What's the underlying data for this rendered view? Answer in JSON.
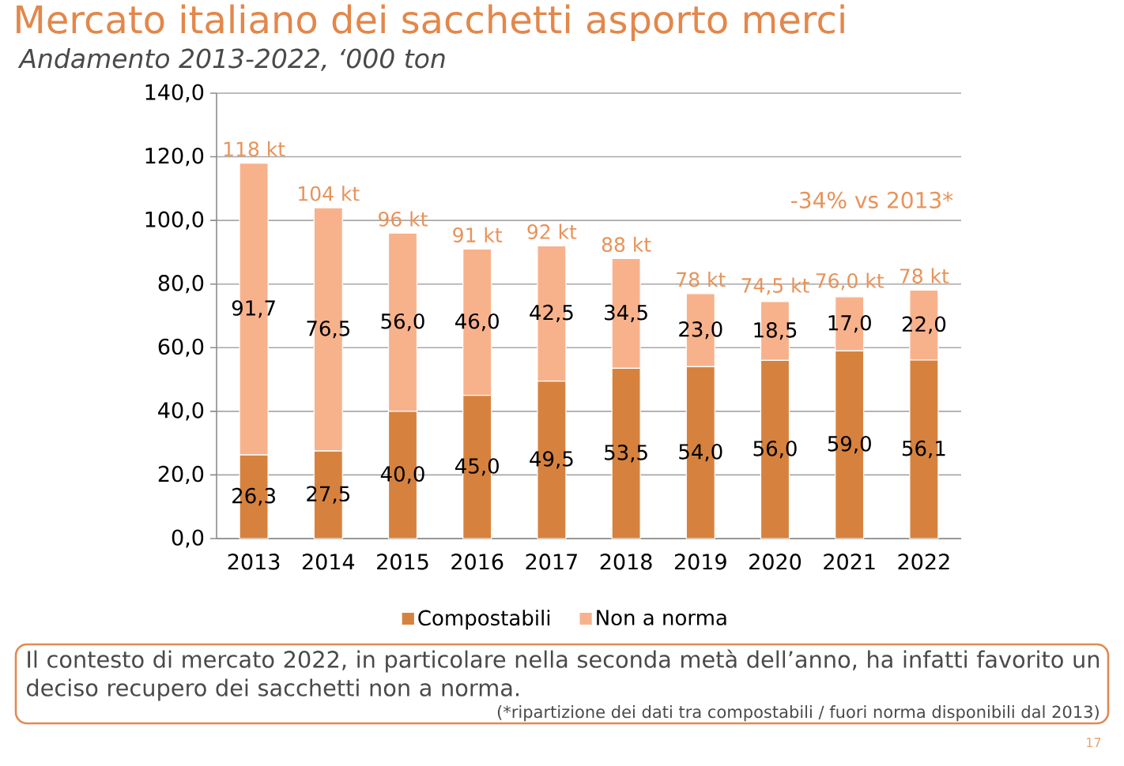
{
  "chart_data": {
    "type": "bar",
    "stacked": true,
    "title": "Mercato italiano dei sacchetti asporto merci",
    "subtitle": "Andamento 2013-2022, ‘000 ton",
    "categories": [
      "2013",
      "2014",
      "2015",
      "2016",
      "2017",
      "2018",
      "2019",
      "2020",
      "2021",
      "2022"
    ],
    "series": [
      {
        "name": "Compostabili",
        "color": "#d6823e",
        "values": [
          26.3,
          27.5,
          40.0,
          45.0,
          49.5,
          53.5,
          54.0,
          56.0,
          59.0,
          56.1
        ],
        "value_labels": [
          "26,3",
          "27,5",
          "40,0",
          "45,0",
          "49,5",
          "53,5",
          "54,0",
          "56,0",
          "59,0",
          "56,1"
        ]
      },
      {
        "name": "Non a norma",
        "color": "#f7b28c",
        "values": [
          91.7,
          76.5,
          56.0,
          46.0,
          42.5,
          34.5,
          23.0,
          18.5,
          17.0,
          22.0
        ],
        "value_labels": [
          "91,7",
          "76,5",
          "56,0",
          "46,0",
          "42,5",
          "34,5",
          "23,0",
          "18,5",
          "17,0",
          "22,0"
        ]
      }
    ],
    "totals": [
      "118 kt",
      "104 kt",
      "96 kt",
      "91 kt",
      "92 kt",
      "88 kt",
      "78 kt",
      "74,5 kt",
      "76,0 kt",
      "78 kt"
    ],
    "ylim": [
      0,
      140
    ],
    "yticks": [
      {
        "value": 0,
        "label": "0,0"
      },
      {
        "value": 20,
        "label": "20,0"
      },
      {
        "value": 40,
        "label": "40,0"
      },
      {
        "value": 60,
        "label": "60,0"
      },
      {
        "value": 80,
        "label": "80,0"
      },
      {
        "value": 100,
        "label": "100,0"
      },
      {
        "value": 120,
        "label": "120,0"
      },
      {
        "value": 140,
        "label": "140,0"
      }
    ],
    "grid": "y",
    "legend": "bottom",
    "annotations": [
      "-34% vs 2013*",
      "Il contesto di mercato 2022, in particolare nella seconda metà dell’anno, ha infatti favorito un deciso recupero dei sacchetti non a norma.",
      "(*ripartizione dei dati tra compostabili / fuori norma disponibili dal 2013)",
      "17"
    ]
  }
}
